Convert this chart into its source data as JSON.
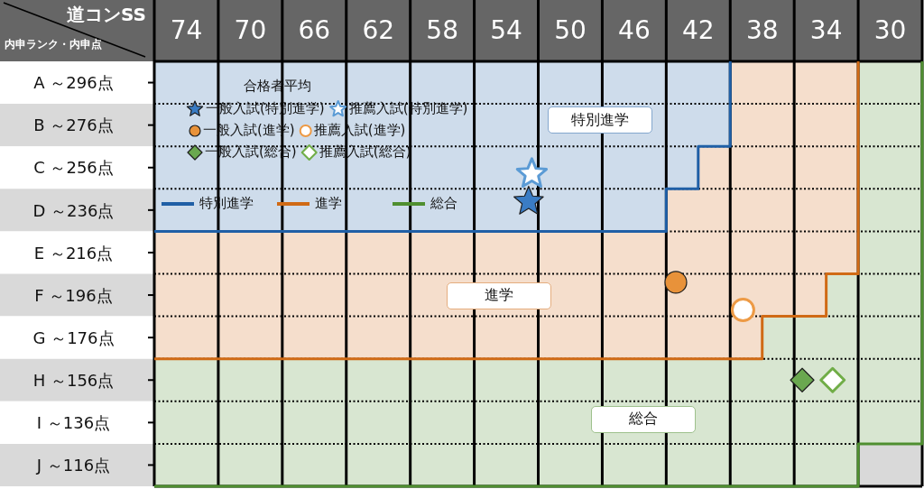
{
  "chart_data": {
    "type": "scatter",
    "xlabel": "道コンSS",
    "ylabel": "内申ランク・内申点",
    "legend_title": "合格者平均",
    "legend": "top left",
    "grid": true,
    "xlim": [
      76,
      28
    ],
    "xticks": [
      {
        "value": 76,
        "label": null
      },
      74,
      {
        "value": 72,
        "label": null
      },
      70,
      {
        "value": 68,
        "label": null
      },
      66,
      {
        "value": 64,
        "label": null
      },
      62,
      {
        "value": 60,
        "label": null
      },
      58,
      {
        "value": 56,
        "label": null
      },
      54,
      {
        "value": 52,
        "label": null
      },
      50,
      {
        "value": 48,
        "label": null
      },
      46,
      {
        "value": 44,
        "label": null
      },
      42,
      {
        "value": 40,
        "label": null
      },
      38,
      {
        "value": 36,
        "label": null
      },
      34,
      {
        "value": 32,
        "label": null
      },
      30,
      {
        "value": 28,
        "label": null
      }
    ],
    "ylim": [
      106,
      306
    ],
    "yticks": [
      {
        "value": 306,
        "label": null
      },
      {
        "value": 296,
        "label": "A ～296点"
      },
      {
        "value": 286,
        "label": null
      },
      {
        "value": 276,
        "label": "B ～276点"
      },
      {
        "value": 266,
        "label": null
      },
      {
        "value": 256,
        "label": "C ～256点"
      },
      {
        "value": 246,
        "label": null
      },
      {
        "value": 236,
        "label": "D ～236点"
      },
      {
        "value": 226,
        "label": null
      },
      {
        "value": 216,
        "label": "E ～216点"
      },
      {
        "value": 206,
        "label": null
      },
      {
        "value": 196,
        "label": "F ～196点"
      },
      {
        "value": 186,
        "label": null
      },
      {
        "value": 176,
        "label": "G ～176点"
      },
      {
        "value": 166,
        "label": null
      },
      {
        "value": 156,
        "label": "H ～156点"
      },
      {
        "value": 146,
        "label": null
      },
      {
        "value": 136,
        "label": "I ～136点"
      },
      {
        "value": 126,
        "label": null
      },
      {
        "value": 116,
        "label": "J ～116点"
      },
      {
        "value": 106,
        "label": null
      }
    ],
    "series": [
      {
        "name": "一般入試(特別進学)",
        "marker": "star",
        "color": "#3a7cc4",
        "x": [
          52.6
        ],
        "values": [
          240
        ]
      },
      {
        "name": "推薦入試(特別進学)",
        "marker": "star",
        "color": "#5b9bd5",
        "colors": [
          "#ffffff"
        ],
        "x": [
          52.4
        ],
        "values": [
          253
        ]
      },
      {
        "name": "一般入試(進学)",
        "marker": "circle",
        "color": "#e8923a",
        "x": [
          43.4
        ],
        "values": [
          202
        ]
      },
      {
        "name": "推薦入試(進学)",
        "marker": "circle",
        "color": "#ed9a45",
        "colors": [
          "#ffffff"
        ],
        "x": [
          39.2
        ],
        "values": [
          189
        ]
      },
      {
        "name": "一般入試(総合)",
        "marker": "diamond",
        "color": "#6aa84f",
        "x": [
          35.5
        ],
        "values": [
          156
        ]
      },
      {
        "name": "推薦入試(総合)",
        "marker": "diamond",
        "color": "#70ad47",
        "colors": [
          "#ffffff"
        ],
        "x": [
          33.6
        ],
        "values": [
          156
        ]
      },
      {
        "name": "特別進学",
        "type": "step",
        "color": "#1f5fa6",
        "x": [
          76,
          44,
          42,
          40
        ],
        "values": [
          226,
          246,
          266,
          306
        ],
        "lower": [
          226,
          246,
          266,
          306
        ],
        "upper": [
          306,
          306,
          306,
          306
        ]
      },
      {
        "name": "進学",
        "type": "step",
        "color": "#d06a15",
        "x": [
          76,
          44,
          42,
          40,
          38,
          34,
          32
        ],
        "values": [
          166,
          166,
          166,
          166,
          186,
          206,
          306
        ],
        "lower": [
          166,
          166,
          166,
          166,
          186,
          206,
          306
        ],
        "upper": [
          226,
          246,
          266,
          306,
          306,
          306,
          306
        ]
      },
      {
        "name": "総合",
        "type": "step",
        "color": "#4f8f30",
        "x": [
          76,
          38,
          34,
          32,
          28
        ],
        "values": [
          106,
          106,
          106,
          126,
          306
        ],
        "lower": [
          106,
          106,
          106,
          126,
          306
        ],
        "upper": [
          166,
          186,
          206,
          306,
          306
        ]
      }
    ],
    "annotations": [
      "特別進学",
      "進学",
      "総合"
    ]
  }
}
